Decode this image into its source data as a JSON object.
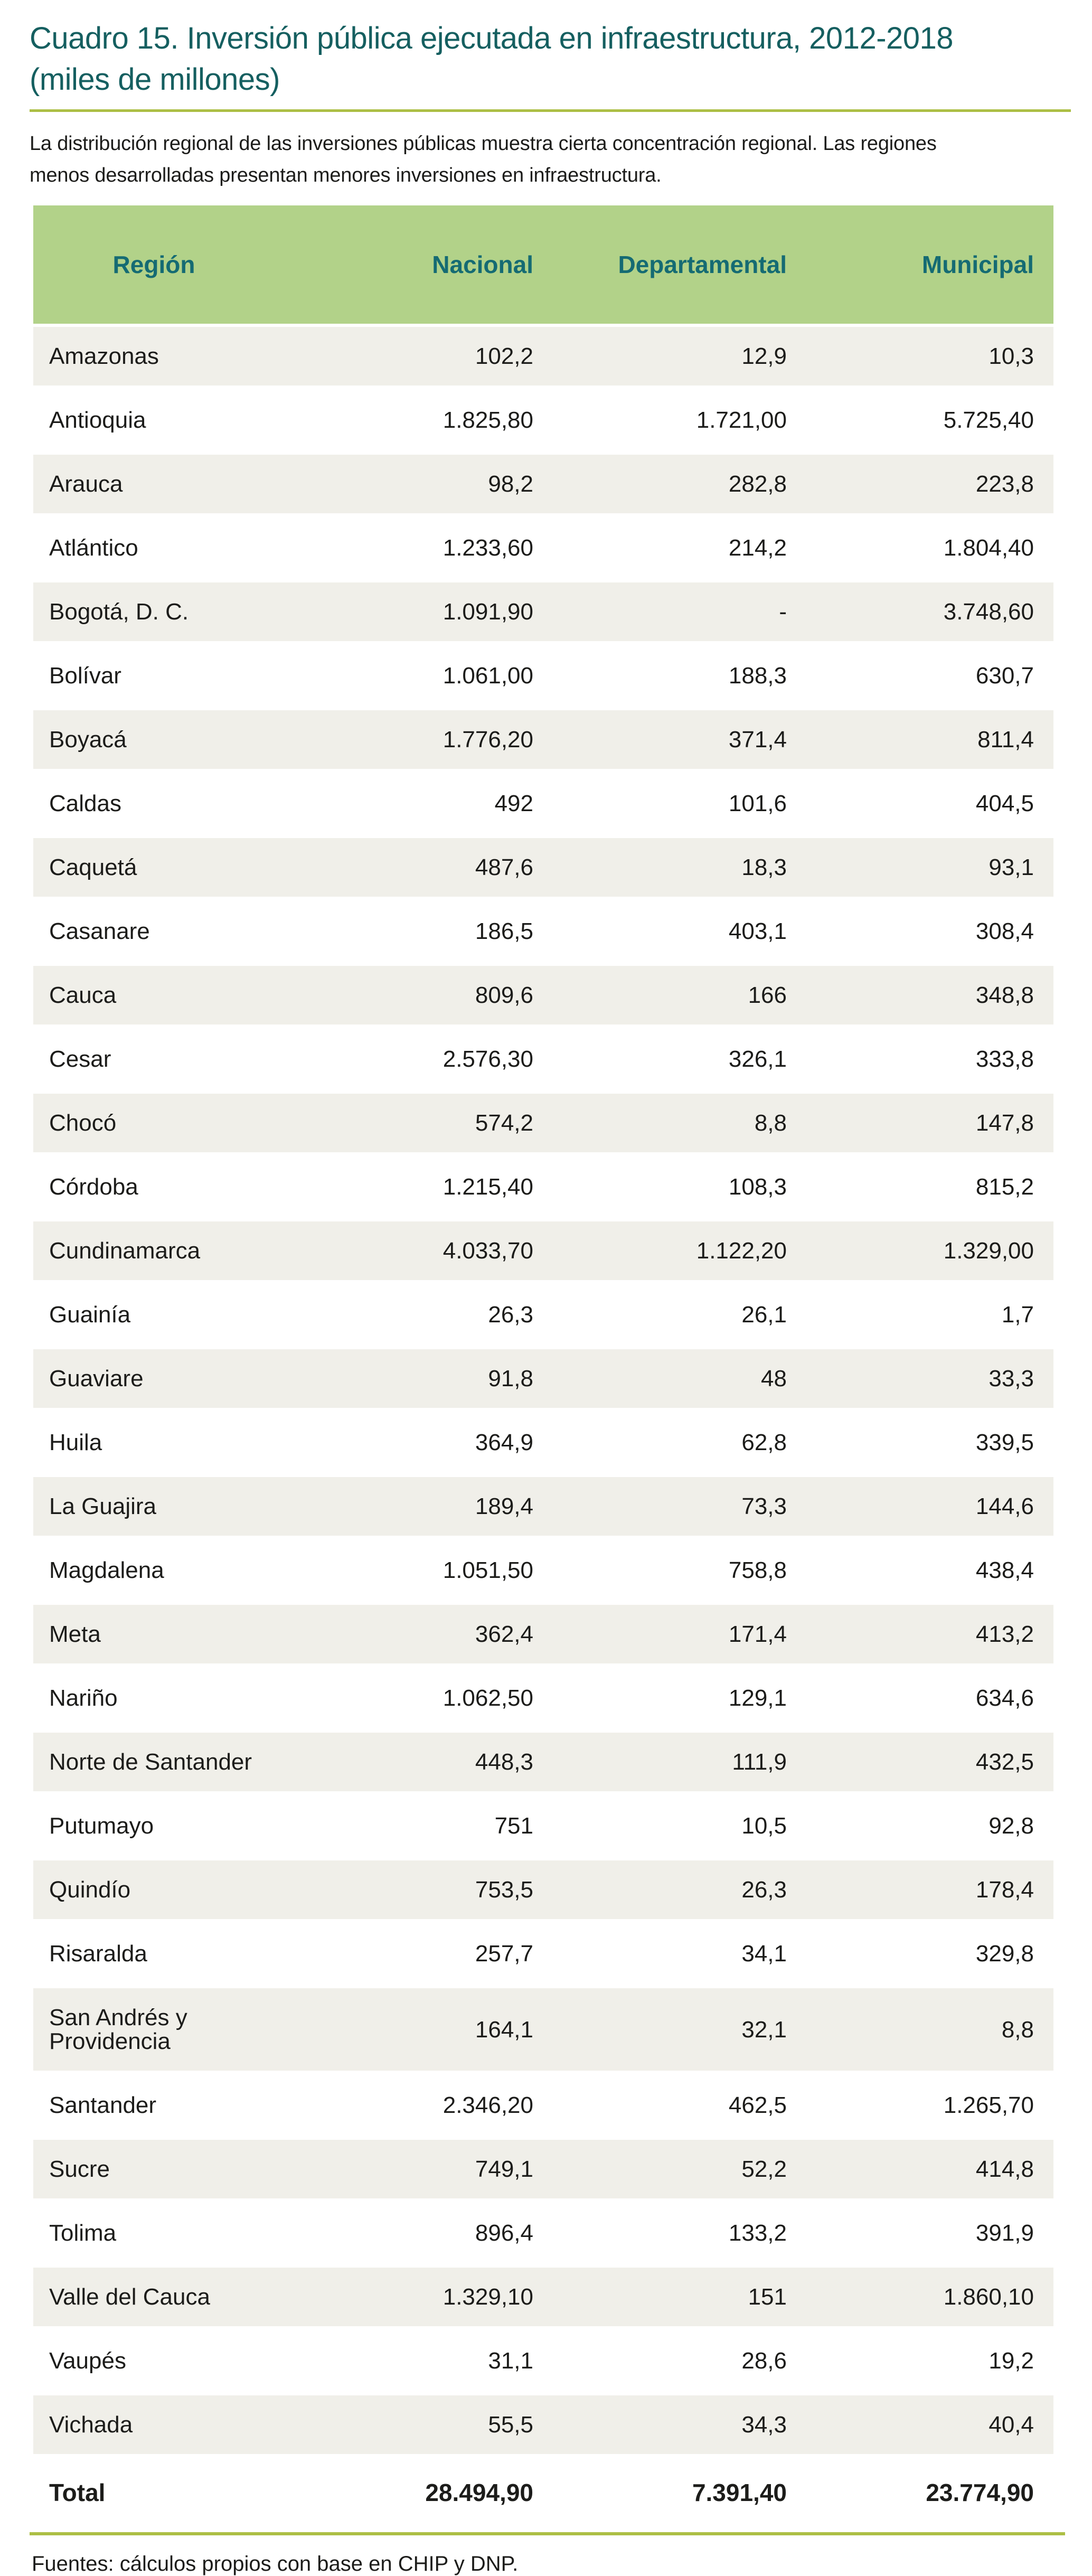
{
  "header": {
    "title_line1": "Cuadro 15. Inversión pública ejecutada en infraestructura, 2012-2018",
    "title_line2": "(miles de millones)"
  },
  "intro": {
    "line1": "La distribución regional de las inversiones públicas muestra cierta concentración regional. Las regiones",
    "line2": "menos desarrolladas presentan menores inversiones en infraestructura."
  },
  "table": {
    "columns": [
      "Región",
      "Nacional",
      "Departamental",
      "Municipal"
    ],
    "rows": [
      {
        "region": "Amazonas",
        "nacional": "102,2",
        "departamental": "12,9",
        "municipal": "10,3"
      },
      {
        "region": "Antioquia",
        "nacional": "1.825,80",
        "departamental": "1.721,00",
        "municipal": "5.725,40"
      },
      {
        "region": "Arauca",
        "nacional": "98,2",
        "departamental": "282,8",
        "municipal": "223,8"
      },
      {
        "region": "Atlántico",
        "nacional": "1.233,60",
        "departamental": "214,2",
        "municipal": "1.804,40"
      },
      {
        "region": "Bogotá, D. C.",
        "nacional": "1.091,90",
        "departamental": "-",
        "municipal": "3.748,60"
      },
      {
        "region": "Bolívar",
        "nacional": "1.061,00",
        "departamental": "188,3",
        "municipal": "630,7"
      },
      {
        "region": "Boyacá",
        "nacional": "1.776,20",
        "departamental": "371,4",
        "municipal": "811,4"
      },
      {
        "region": "Caldas",
        "nacional": "492",
        "departamental": "101,6",
        "municipal": "404,5"
      },
      {
        "region": "Caquetá",
        "nacional": "487,6",
        "departamental": "18,3",
        "municipal": "93,1"
      },
      {
        "region": "Casanare",
        "nacional": "186,5",
        "departamental": "403,1",
        "municipal": "308,4"
      },
      {
        "region": "Cauca",
        "nacional": "809,6",
        "departamental": "166",
        "municipal": "348,8"
      },
      {
        "region": "Cesar",
        "nacional": "2.576,30",
        "departamental": "326,1",
        "municipal": "333,8"
      },
      {
        "region": "Chocó",
        "nacional": "574,2",
        "departamental": "8,8",
        "municipal": "147,8"
      },
      {
        "region": "Córdoba",
        "nacional": "1.215,40",
        "departamental": "108,3",
        "municipal": "815,2"
      },
      {
        "region": "Cundinamarca",
        "nacional": "4.033,70",
        "departamental": "1.122,20",
        "municipal": "1.329,00"
      },
      {
        "region": "Guainía",
        "nacional": "26,3",
        "departamental": "26,1",
        "municipal": "1,7"
      },
      {
        "region": "Guaviare",
        "nacional": "91,8",
        "departamental": "48",
        "municipal": "33,3"
      },
      {
        "region": "Huila",
        "nacional": "364,9",
        "departamental": "62,8",
        "municipal": "339,5"
      },
      {
        "region": "La Guajira",
        "nacional": "189,4",
        "departamental": "73,3",
        "municipal": "144,6"
      },
      {
        "region": "Magdalena",
        "nacional": "1.051,50",
        "departamental": "758,8",
        "municipal": "438,4"
      },
      {
        "region": "Meta",
        "nacional": "362,4",
        "departamental": "171,4",
        "municipal": "413,2"
      },
      {
        "region": "Nariño",
        "nacional": "1.062,50",
        "departamental": "129,1",
        "municipal": "634,6"
      },
      {
        "region": "Norte de Santander",
        "nacional": "448,3",
        "departamental": "111,9",
        "municipal": "432,5"
      },
      {
        "region": "Putumayo",
        "nacional": "751",
        "departamental": "10,5",
        "municipal": "92,8"
      },
      {
        "region": "Quindío",
        "nacional": "753,5",
        "departamental": "26,3",
        "municipal": "178,4"
      },
      {
        "region": "Risaralda",
        "nacional": "257,7",
        "departamental": "34,1",
        "municipal": "329,8"
      },
      {
        "region": "San Andrés y Providencia",
        "nacional": "164,1",
        "departamental": "32,1",
        "municipal": "8,8"
      },
      {
        "region": "Santander",
        "nacional": "2.346,20",
        "departamental": "462,5",
        "municipal": "1.265,70"
      },
      {
        "region": "Sucre",
        "nacional": "749,1",
        "departamental": "52,2",
        "municipal": "414,8"
      },
      {
        "region": "Tolima",
        "nacional": "896,4",
        "departamental": "133,2",
        "municipal": "391,9"
      },
      {
        "region": "Valle del Cauca",
        "nacional": "1.329,10",
        "departamental": "151",
        "municipal": "1.860,10"
      },
      {
        "region": "Vaupés",
        "nacional": "31,1",
        "departamental": "28,6",
        "municipal": "19,2"
      },
      {
        "region": "Vichada",
        "nacional": "55,5",
        "departamental": "34,3",
        "municipal": "40,4"
      }
    ],
    "total": {
      "region": "Total",
      "nacional": "28.494,90",
      "departamental": "7.391,40",
      "municipal": "23.774,90"
    }
  },
  "footer": {
    "source": "Fuentes: cálculos propios con base en CHIP y DNP."
  },
  "colors": {
    "title": "#155f60",
    "header-bg": "#b2d289",
    "header-text": "#156b73",
    "row-alt": "#f0efe9",
    "rule": "#acbf45",
    "text": "#1c1c1a"
  }
}
